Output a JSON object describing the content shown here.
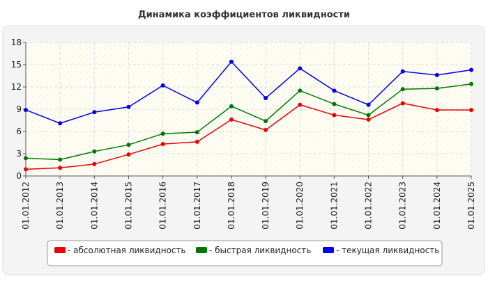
{
  "chart_data": {
    "type": "line",
    "title": "Динамика коэффициентов ликвидности",
    "categories": [
      "01.01.2012",
      "01.01.2013",
      "01.01.2014",
      "01.01.2015",
      "01.01.2016",
      "01.01.2017",
      "01.01.2018",
      "01.01.2019",
      "01.01.2020",
      "01.01.2021",
      "01.01.2022",
      "01.01.2023",
      "01.01.2024",
      "01.01.2025"
    ],
    "series": [
      {
        "name": "- абсолютная ликвидность",
        "color": "#ee0000",
        "values": [
          0.9,
          1.1,
          1.6,
          2.9,
          4.3,
          4.6,
          7.6,
          6.2,
          9.6,
          8.2,
          7.6,
          9.8,
          8.9,
          8.9
        ]
      },
      {
        "name": "- быстрая ликвидность",
        "color": "#007700",
        "values": [
          2.4,
          2.2,
          3.3,
          4.2,
          5.7,
          5.9,
          9.4,
          7.4,
          11.5,
          9.7,
          8.2,
          11.7,
          11.8,
          12.4
        ]
      },
      {
        "name": "- текущая ликвидность",
        "color": "#0000ee",
        "values": [
          8.9,
          7.1,
          8.6,
          9.3,
          12.2,
          9.9,
          15.4,
          10.5,
          14.5,
          11.5,
          9.6,
          14.1,
          13.6,
          14.3
        ]
      }
    ],
    "ylim": [
      0,
      18
    ],
    "yticks": [
      0,
      3,
      6,
      9,
      12,
      15,
      18
    ],
    "grid": true,
    "legend": "bottom"
  }
}
